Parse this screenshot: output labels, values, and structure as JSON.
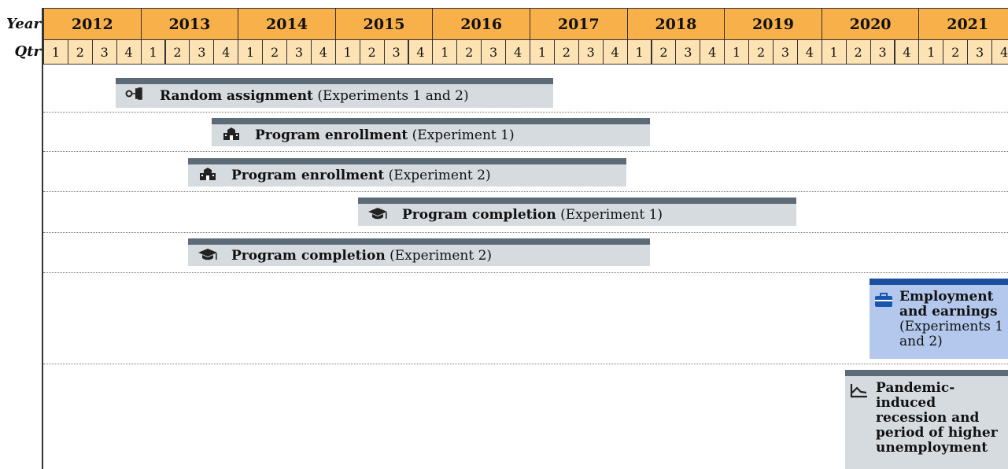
{
  "header": {
    "year_label": "Year",
    "qtr_label": "Qtr"
  },
  "years": [
    {
      "year": "2012",
      "quarters": [
        "1",
        "2",
        "3",
        "4"
      ]
    },
    {
      "year": "2013",
      "quarters": [
        "1",
        "2",
        "3",
        "4"
      ]
    },
    {
      "year": "2014",
      "quarters": [
        "1",
        "2",
        "3",
        "4"
      ]
    },
    {
      "year": "2015",
      "quarters": [
        "1",
        "2",
        "3",
        "4"
      ]
    },
    {
      "year": "2016",
      "quarters": [
        "1",
        "2",
        "3",
        "4"
      ]
    },
    {
      "year": "2017",
      "quarters": [
        "1",
        "2",
        "3",
        "4"
      ]
    },
    {
      "year": "2018",
      "quarters": [
        "1",
        "2",
        "3",
        "4"
      ]
    },
    {
      "year": "2019",
      "quarters": [
        "1",
        "2",
        "3",
        "4"
      ]
    },
    {
      "year": "2020",
      "quarters": [
        "1",
        "2",
        "3",
        "4"
      ]
    },
    {
      "year": "2021",
      "quarters": [
        "1",
        "2",
        "3",
        "4"
      ]
    }
  ],
  "bars": [
    {
      "bold": "Random assignment",
      "rest": "(Experiments 1 and 2)"
    },
    {
      "bold": "Program enrollment",
      "rest": "(Experiment 1)"
    },
    {
      "bold": "Program enrollment",
      "rest": "(Experiment 2)"
    },
    {
      "bold": "Program completion",
      "rest": "(Experiment 1)"
    },
    {
      "bold": "Program completion",
      "rest": "(Experiment 2)"
    },
    {
      "bold": "Employment and earnings",
      "rest": "(Experiments 1 and 2)"
    },
    {
      "bold": "Pandemic-induced recession and period of higher unemployment",
      "rest": null
    }
  ]
}
